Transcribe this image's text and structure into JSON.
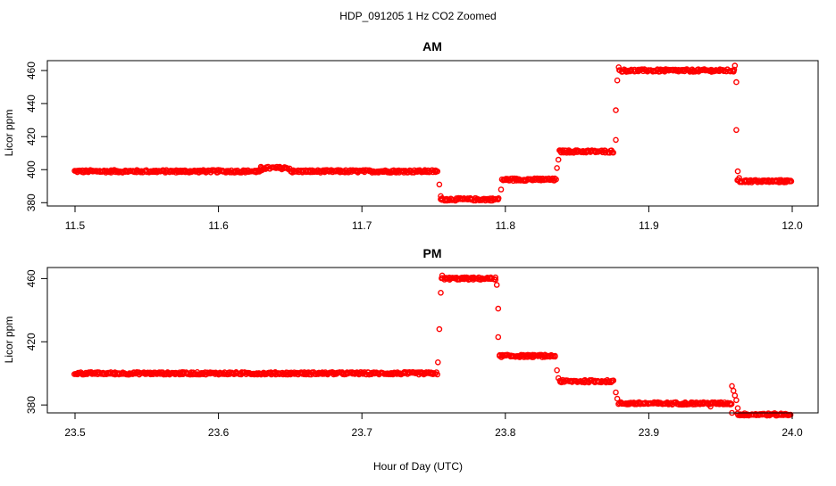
{
  "figure": {
    "title": "HDP_091205  1 Hz CO2 Zoomed",
    "xlabel": "Hour of Day (UTC)",
    "point_color": "#ff0000"
  },
  "chart_data": [
    {
      "type": "scatter",
      "title": "AM",
      "xlabel": "",
      "ylabel": "Licor ppm",
      "xlim": [
        11.5,
        12.0
      ],
      "ylim": [
        378,
        466
      ],
      "xticks": [
        "11.5",
        "11.6",
        "11.7",
        "11.8",
        "11.9",
        "12.0"
      ],
      "yticks": [
        "380",
        "400",
        "420",
        "440",
        "460"
      ],
      "series": [
        {
          "segments": [
            {
              "x0": 11.5,
              "x1": 11.63,
              "y": 399
            },
            {
              "x0": 11.63,
              "x1": 11.65,
              "y": 401
            },
            {
              "x0": 11.65,
              "x1": 11.753,
              "y": 399
            },
            {
              "x0": 11.755,
              "x1": 11.796,
              "y": 382
            },
            {
              "x0": 11.798,
              "x1": 11.835,
              "y": 394
            },
            {
              "x0": 11.838,
              "x1": 11.876,
              "y": 411
            },
            {
              "x0": 11.88,
              "x1": 11.96,
              "y": 460
            },
            {
              "x0": 11.962,
              "x1": 12.0,
              "y": 393
            }
          ],
          "transitions": [
            {
              "x": 11.754,
              "y": 391
            },
            {
              "x": 11.755,
              "y": 384
            },
            {
              "x": 11.797,
              "y": 388
            },
            {
              "x": 11.836,
              "y": 401
            },
            {
              "x": 11.837,
              "y": 406
            },
            {
              "x": 11.877,
              "y": 418
            },
            {
              "x": 11.877,
              "y": 436
            },
            {
              "x": 11.878,
              "y": 454
            },
            {
              "x": 11.879,
              "y": 462
            },
            {
              "x": 11.96,
              "y": 463
            },
            {
              "x": 11.961,
              "y": 453
            },
            {
              "x": 11.961,
              "y": 424
            },
            {
              "x": 11.962,
              "y": 399
            },
            {
              "x": 11.963,
              "y": 395
            }
          ]
        }
      ]
    },
    {
      "type": "scatter",
      "title": "PM",
      "xlabel": "",
      "ylabel": "Licor ppm",
      "xlim": [
        23.5,
        24.0
      ],
      "ylim": [
        375,
        467
      ],
      "xticks": [
        "23.5",
        "23.6",
        "23.7",
        "23.8",
        "23.9",
        "24.0"
      ],
      "yticks": [
        "380",
        "420",
        "460"
      ],
      "series": [
        {
          "segments": [
            {
              "x0": 23.5,
              "x1": 23.753,
              "y": 400
            },
            {
              "x0": 23.756,
              "x1": 23.793,
              "y": 460
            },
            {
              "x0": 23.796,
              "x1": 23.835,
              "y": 411
            },
            {
              "x0": 23.838,
              "x1": 23.876,
              "y": 395
            },
            {
              "x0": 23.879,
              "x1": 23.958,
              "y": 381
            },
            {
              "x0": 23.962,
              "x1": 24.0,
              "y": 374
            }
          ],
          "transitions": [
            {
              "x": 23.753,
              "y": 407
            },
            {
              "x": 23.754,
              "y": 428
            },
            {
              "x": 23.755,
              "y": 451
            },
            {
              "x": 23.756,
              "y": 462
            },
            {
              "x": 23.794,
              "y": 456
            },
            {
              "x": 23.795,
              "y": 441
            },
            {
              "x": 23.795,
              "y": 423
            },
            {
              "x": 23.796,
              "y": 411
            },
            {
              "x": 23.836,
              "y": 402
            },
            {
              "x": 23.837,
              "y": 397
            },
            {
              "x": 23.877,
              "y": 388
            },
            {
              "x": 23.878,
              "y": 384
            },
            {
              "x": 23.958,
              "y": 392
            },
            {
              "x": 23.959,
              "y": 389
            },
            {
              "x": 23.96,
              "y": 386
            },
            {
              "x": 23.961,
              "y": 383
            },
            {
              "x": 23.962,
              "y": 378
            },
            {
              "x": 23.958,
              "y": 375
            },
            {
              "x": 23.943,
              "y": 379
            }
          ]
        }
      ]
    }
  ]
}
